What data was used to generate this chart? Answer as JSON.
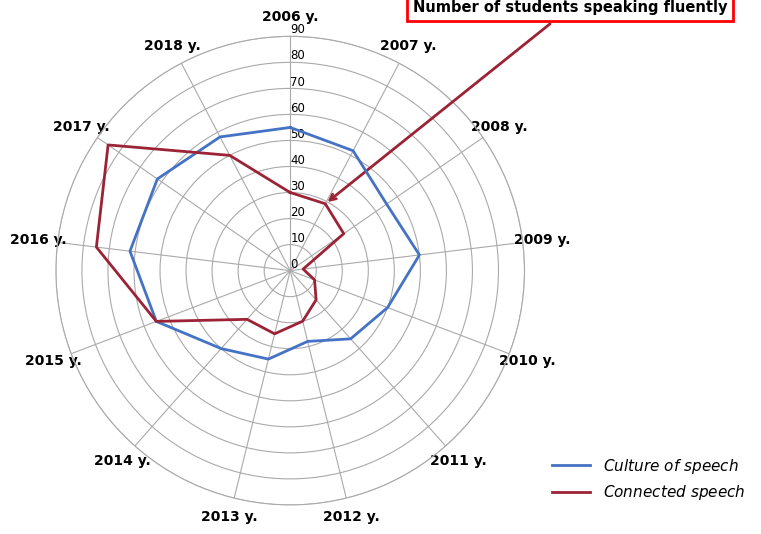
{
  "categories": [
    "2006 y.",
    "2007 y.",
    "2008 y.",
    "2009 y.",
    "2010 y.",
    "2011 y.",
    "2012 y.",
    "2013 y.",
    "2014 y.",
    "2015 y.",
    "2016 y.",
    "2017 y.",
    "2018 y."
  ],
  "culture_of_speech": [
    55,
    52,
    45,
    50,
    40,
    35,
    28,
    35,
    40,
    55,
    62,
    62,
    58
  ],
  "connected_speech": [
    30,
    29,
    25,
    5,
    10,
    15,
    20,
    25,
    25,
    55,
    75,
    85,
    50
  ],
  "r_max": 90,
  "r_ticks": [
    0,
    10,
    20,
    30,
    40,
    50,
    60,
    70,
    80,
    90
  ],
  "culture_color": "#4472C4",
  "connected_color": "#9B2335",
  "grid_color": "#AAAAAA",
  "annotation_text": "Number of students speaking fluently",
  "legend_culture": "Culture of speech",
  "legend_connected": "Connected speech"
}
